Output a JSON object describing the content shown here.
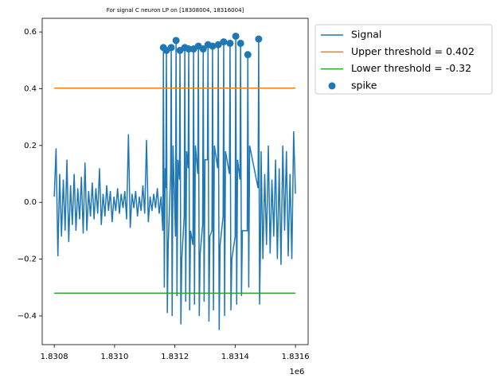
{
  "chart_data": {
    "type": "line",
    "title": "For signal C neuron LP on [18308004, 18316004]",
    "x_offset_label": "1e6",
    "xlim": [
      1830760,
      1831642
    ],
    "ylim": [
      -0.501,
      0.648
    ],
    "xticks": [
      {
        "value": 1830800,
        "label": "1.8308"
      },
      {
        "value": 1831000,
        "label": "1.8310"
      },
      {
        "value": 1831200,
        "label": "1.8312"
      },
      {
        "value": 1831400,
        "label": "1.8314"
      },
      {
        "value": 1831600,
        "label": "1.8316"
      }
    ],
    "yticks": [
      {
        "value": -0.4,
        "label": "−0.4"
      },
      {
        "value": -0.2,
        "label": "−0.2"
      },
      {
        "value": 0,
        "label": "0.0"
      },
      0.2,
      0.4,
      0.6
    ],
    "legend": "upper left outside",
    "series": [
      {
        "name": "Signal",
        "type": "line",
        "color": "#1f77b4",
        "x": [
          1830800,
          1830806,
          1830812,
          1830818,
          1830824,
          1830830,
          1830836,
          1830842,
          1830848,
          1830854,
          1830860,
          1830866,
          1830872,
          1830878,
          1830884,
          1830890,
          1830896,
          1830902,
          1830908,
          1830914,
          1830920,
          1830926,
          1830932,
          1830938,
          1830944,
          1830950,
          1830956,
          1830962,
          1830968,
          1830974,
          1830980,
          1830986,
          1830992,
          1830998,
          1831004,
          1831010,
          1831016,
          1831022,
          1831028,
          1831034,
          1831040,
          1831046,
          1831052,
          1831058,
          1831064,
          1831070,
          1831076,
          1831082,
          1831088,
          1831094,
          1831100,
          1831106,
          1831112,
          1831118,
          1831124,
          1831130,
          1831136,
          1831142,
          1831148,
          1831154,
          1831160,
          1831162,
          1831165,
          1831168,
          1831170,
          1831172,
          1831175,
          1831178,
          1831186,
          1831188,
          1831191,
          1831194,
          1831202,
          1831204,
          1831207,
          1831210,
          1831215,
          1831217,
          1831220,
          1831223,
          1831231,
          1831233,
          1831236,
          1831239,
          1831244,
          1831246,
          1831249,
          1831252,
          1831260,
          1831262,
          1831265,
          1831268,
          1831276,
          1831278,
          1831281,
          1831284,
          1831292,
          1831294,
          1831297,
          1831300,
          1831308,
          1831310,
          1831313,
          1831316,
          1831323,
          1831325,
          1831328,
          1831331,
          1831342,
          1831344,
          1831347,
          1831350,
          1831360,
          1831362,
          1831365,
          1831368,
          1831381,
          1831383,
          1831386,
          1831389,
          1831400,
          1831402,
          1831405,
          1831408,
          1831416,
          1831418,
          1831421,
          1831424,
          1831440,
          1831442,
          1831445,
          1831448,
          1831476,
          1831478,
          1831481,
          1831484,
          1831486,
          1831492,
          1831498,
          1831504,
          1831510,
          1831516,
          1831522,
          1831528,
          1831534,
          1831540,
          1831546,
          1831552,
          1831558,
          1831564,
          1831570,
          1831576,
          1831582,
          1831588,
          1831594,
          1831600
        ],
        "values": [
          0.02,
          0.19,
          -0.19,
          0.1,
          -0.12,
          0.08,
          -0.1,
          0.15,
          -0.14,
          0.06,
          -0.08,
          0.1,
          -0.1,
          0.05,
          -0.06,
          0.09,
          -0.11,
          0.14,
          -0.1,
          0.04,
          -0.05,
          0.07,
          -0.06,
          0.05,
          -0.04,
          0.12,
          -0.08,
          0.03,
          -0.05,
          0.06,
          -0.03,
          0.04,
          -0.07,
          0.02,
          -0.03,
          0.05,
          -0.04,
          0.03,
          -0.02,
          0.04,
          -0.06,
          0.24,
          -0.09,
          0.03,
          -0.02,
          0.04,
          -0.05,
          0.02,
          -0.03,
          0.06,
          -0.04,
          0.22,
          -0.07,
          0.02,
          -0.03,
          0.03,
          -0.02,
          0.05,
          -0.04,
          0.02,
          -0.1,
          0.545,
          -0.3,
          0.12,
          0.05,
          0.535,
          -0.39,
          -0.15,
          0.1,
          0.545,
          -0.4,
          0.2,
          -0.12,
          0.57,
          -0.33,
          0.15,
          0.08,
          0.535,
          -0.43,
          -0.2,
          -0.05,
          0.545,
          -0.35,
          0.18,
          0.12,
          0.54,
          -0.38,
          -0.1,
          -0.15,
          0.54,
          -0.36,
          0.2,
          0.1,
          0.55,
          -0.4,
          -0.18,
          -0.08,
          0.54,
          -0.35,
          0.15,
          0.15,
          0.555,
          -0.42,
          -0.12,
          -0.1,
          0.55,
          -0.38,
          0.2,
          0.12,
          0.555,
          -0.45,
          -0.15,
          -0.05,
          0.565,
          -0.4,
          0.18,
          0.1,
          0.56,
          -0.38,
          -0.2,
          -0.12,
          0.585,
          -0.36,
          0.15,
          0.08,
          0.56,
          -0.33,
          -0.1,
          -0.1,
          0.52,
          -0.3,
          0.2,
          0.05,
          0.575,
          -0.36,
          -0.15,
          0.18,
          -0.2,
          0.1,
          -0.15,
          0.2,
          -0.18,
          0.08,
          -0.12,
          0.15,
          -0.2,
          0.12,
          -0.22,
          0.2,
          -0.1,
          0.18,
          -0.19,
          0.1,
          -0.2,
          0.25,
          0.03
        ]
      },
      {
        "name": "Upper threshold = 0.402",
        "type": "line",
        "color": "#ff7f0e",
        "x": [
          1830800,
          1831600
        ],
        "values": [
          0.402,
          0.402
        ]
      },
      {
        "name": "Lower threshold = -0.32",
        "type": "line",
        "color": "#2ca02c",
        "x": [
          1830800,
          1831600
        ],
        "values": [
          -0.32,
          -0.32
        ]
      },
      {
        "name": "spike",
        "type": "scatter",
        "color": "#1f77b4",
        "x": [
          1831162,
          1831172,
          1831188,
          1831204,
          1831217,
          1831233,
          1831246,
          1831262,
          1831278,
          1831294,
          1831310,
          1831325,
          1831344,
          1831362,
          1831383,
          1831402,
          1831418,
          1831442,
          1831478
        ],
        "values": [
          0.545,
          0.535,
          0.545,
          0.57,
          0.535,
          0.545,
          0.54,
          0.54,
          0.55,
          0.54,
          0.555,
          0.55,
          0.555,
          0.565,
          0.56,
          0.585,
          0.56,
          0.52,
          0.575
        ]
      }
    ]
  }
}
